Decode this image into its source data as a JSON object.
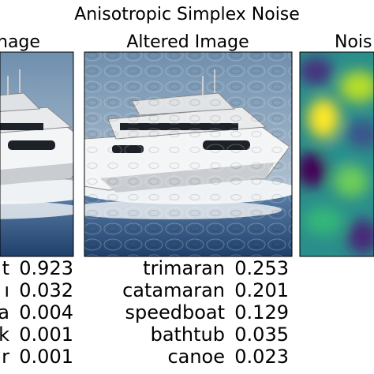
{
  "title": "Anisotropic Simplex Noise",
  "panels": [
    {
      "title": "nage",
      "predictions": [
        {
          "label": "t",
          "score": "0.923"
        },
        {
          "label": "ı",
          "score": "0.032"
        },
        {
          "label": "a",
          "score": "0.004"
        },
        {
          "label": "k",
          "score": "0.001"
        },
        {
          "label": "r",
          "score": "0.001"
        }
      ]
    },
    {
      "title": "Altered Image",
      "predictions": [
        {
          "label": "trimaran",
          "score": "0.253"
        },
        {
          "label": "catamaran",
          "score": "0.201"
        },
        {
          "label": "speedboat",
          "score": "0.129"
        },
        {
          "label": "bathtub",
          "score": "0.035"
        },
        {
          "label": "canoe",
          "score": "0.023"
        }
      ]
    },
    {
      "title": "Nois"
    }
  ]
}
